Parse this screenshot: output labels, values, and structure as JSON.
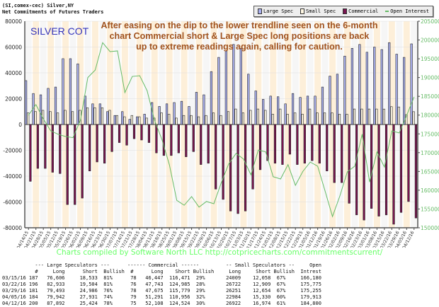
{
  "header": {
    "line1": "(SI,comex-cec) Silver,NY",
    "line2": "Net Commitments of Futures Traders"
  },
  "legend": [
    {
      "label": "Large Spec",
      "color": "#aab0ee"
    },
    {
      "label": "Small Spec",
      "color": "#fff8e4"
    },
    {
      "label": "Commercial",
      "color": "#7a1550"
    },
    {
      "label": "Open Interest",
      "color": "#66bb66"
    }
  ],
  "annotations": {
    "badge": "SILVER COT",
    "comment": [
      "After easing on the dip to the lower trendline seen on the 6-month",
      "chart Commercial short & Large Spec long positions are back",
      "up to extreme readings again, calling for caution."
    ]
  },
  "credit": "Charts compiled by Software North LLC  http://cotpricecharts.com/commitmentscurrent/",
  "chart_data": {
    "type": "bar",
    "categories": [
      "04/14/15",
      "04/21/15",
      "04/28/15",
      "05/05/15",
      "05/12/15",
      "05/19/15",
      "05/26/15",
      "06/02/15",
      "06/09/15",
      "06/16/15",
      "06/23/15",
      "06/30/15",
      "07/07/15",
      "07/14/15",
      "07/21/15",
      "07/28/15",
      "08/04/15",
      "08/11/15",
      "08/18/15",
      "08/25/15",
      "09/01/15",
      "09/08/15",
      "09/15/15",
      "09/22/15",
      "09/29/15",
      "10/06/15",
      "10/13/15",
      "10/20/15",
      "10/27/15",
      "11/03/15",
      "11/10/15",
      "11/17/15",
      "11/24/15",
      "12/01/15",
      "12/08/15",
      "12/15/15",
      "12/22/15",
      "12/29/15",
      "01/05/16",
      "01/12/16",
      "01/19/16",
      "01/26/16",
      "02/02/16",
      "02/09/16",
      "02/16/16",
      "02/23/16",
      "03/01/16",
      "03/08/16",
      "03/15/16",
      "03/22/16",
      "03/29/16",
      "04/05/16",
      "04/12/16"
    ],
    "series": [
      {
        "name": "Large Spec",
        "axis": "left",
        "type": "bar",
        "values": [
          34000,
          24000,
          23000,
          28000,
          29000,
          51000,
          51000,
          47000,
          22000,
          16000,
          16000,
          10000,
          7000,
          10000,
          4000,
          6000,
          8000,
          17000,
          14000,
          16000,
          17000,
          18000,
          14000,
          25000,
          23000,
          41000,
          52000,
          57000,
          62000,
          59000,
          39000,
          26000,
          19500,
          22000,
          21500,
          16000,
          24000,
          21000,
          22000,
          22000,
          29000,
          37500,
          39000,
          53000,
          59000,
          62000,
          56000,
          60000,
          58073,
          63429,
          54507,
          52011,
          62468
        ]
      },
      {
        "name": "Small Spec",
        "axis": "left",
        "type": "bar",
        "values": [
          9000,
          10000,
          11000,
          10000,
          9000,
          11000,
          10000,
          11000,
          13000,
          13000,
          13000,
          11000,
          7000,
          6000,
          7000,
          6000,
          5000,
          5000,
          9000,
          8000,
          5000,
          7000,
          7000,
          6000,
          7000,
          9000,
          7000,
          10000,
          12000,
          9000,
          11000,
          12000,
          11000,
          8000,
          12000,
          8000,
          9000,
          8000,
          12000,
          9000,
          9000,
          9000,
          8000,
          8000,
          12000,
          12000,
          12000,
          12000,
          11951,
          13813,
          13597,
          7654,
          9948
        ]
      },
      {
        "name": "Commercial",
        "axis": "left",
        "type": "bar",
        "values": [
          -44000,
          -34000,
          -34000,
          -37000,
          -38000,
          -62000,
          -62000,
          -57000,
          -36000,
          -29000,
          -30000,
          -21000,
          -14000,
          -16000,
          -11000,
          -12000,
          -14000,
          -22000,
          -24000,
          -24000,
          -22000,
          -25000,
          -21000,
          -31000,
          -30000,
          -50000,
          -58000,
          -67000,
          -69000,
          -67000,
          -50000,
          -35000,
          -28000,
          -30000,
          -31000,
          -23000,
          -31000,
          -30000,
          -28000,
          -30000,
          -36000,
          -45000,
          -45000,
          -61000,
          -70000,
          -74000,
          -65000,
          -71000,
          -70024,
          -77242,
          -68104,
          -59665,
          -72416
        ]
      },
      {
        "name": "Open Interest",
        "axis": "right",
        "type": "line",
        "values": [
          180000,
          182800,
          179000,
          175800,
          174900,
          174300,
          174000,
          178600,
          190000,
          192000,
          199300,
          196900,
          197100,
          186000,
          190300,
          190500,
          186500,
          178600,
          173500,
          166800,
          157300,
          156000,
          158300,
          155500,
          157000,
          156400,
          162000,
          167000,
          169800,
          168300,
          164100,
          170700,
          170200,
          163600,
          163000,
          166800,
          161300,
          165000,
          167500,
          166400,
          159800,
          153000,
          158500,
          164900,
          166400,
          174900,
          162200,
          170200,
          166180,
          175775,
          175255,
          179913,
          184800
        ]
      }
    ],
    "ylim": [
      -80000,
      80000
    ],
    "yticks": [
      -80000,
      -60000,
      -40000,
      -20000,
      0,
      20000,
      40000,
      60000,
      80000
    ],
    "y2lim": [
      150000,
      205000
    ],
    "y2ticks": [
      150000,
      155000,
      160000,
      165000,
      170000,
      175000,
      180000,
      185000,
      190000,
      195000,
      200000,
      205000
    ],
    "grid": true,
    "legend_position": "top-right"
  },
  "table": {
    "group_headers": {
      "large": "--- Large Speculators ---",
      "commercial": "------ Commercial ------",
      "small": "-- Small Speculators --",
      "open": "Open"
    },
    "columns": {
      "count": "#",
      "long": "Long",
      "short": "Short",
      "bullish": "Bullish",
      "interest": "Intrest"
    },
    "rows": [
      {
        "date": "03/15/16",
        "ls_n": "187",
        "ls_long": "76,606",
        "ls_short": "18,533",
        "ls_bull": "81%",
        "c_n": "78",
        "c_long": "46,447",
        "c_short": "116,471",
        "c_bull": "29%",
        "ss_long": "24009",
        "ss_short": "12,058",
        "ss_bull": "67%",
        "oi": "166,180"
      },
      {
        "date": "03/22/16",
        "ls_n": "196",
        "ls_long": "82,933",
        "ls_short": "19,504",
        "ls_bull": "81%",
        "c_n": "76",
        "c_long": "47,743",
        "c_short": "124,985",
        "c_bull": "28%",
        "ss_long": "26722",
        "ss_short": "12,909",
        "ss_bull": "67%",
        "oi": "175,775"
      },
      {
        "date": "03/29/16",
        "ls_n": "181",
        "ls_long": "79,493",
        "ls_short": "24,986",
        "ls_bull": "76%",
        "c_n": "78",
        "c_long": "47,675",
        "c_short": "115,779",
        "c_bull": "29%",
        "ss_long": "26251",
        "ss_short": "12,654",
        "ss_bull": "67%",
        "oi": "175,255"
      },
      {
        "date": "04/05/16",
        "ls_n": "184",
        "ls_long": "79,942",
        "ls_short": "27,931",
        "ls_bull": "74%",
        "c_n": "79",
        "c_long": "51,291",
        "c_short": "110,956",
        "c_bull": "32%",
        "ss_long": "22984",
        "ss_short": "15,330",
        "ss_bull": "60%",
        "oi": "179,913"
      },
      {
        "date": "04/12/16",
        "ls_n": "200",
        "ls_long": "87,892",
        "ls_short": "25,424",
        "ls_bull": "78%",
        "c_n": "75",
        "c_long": "52,108",
        "c_short": "124,524",
        "c_bull": "30%",
        "ss_long": "26922",
        "ss_short": "16,974",
        "ss_bull": "61%",
        "oi": "184,800"
      }
    ]
  }
}
